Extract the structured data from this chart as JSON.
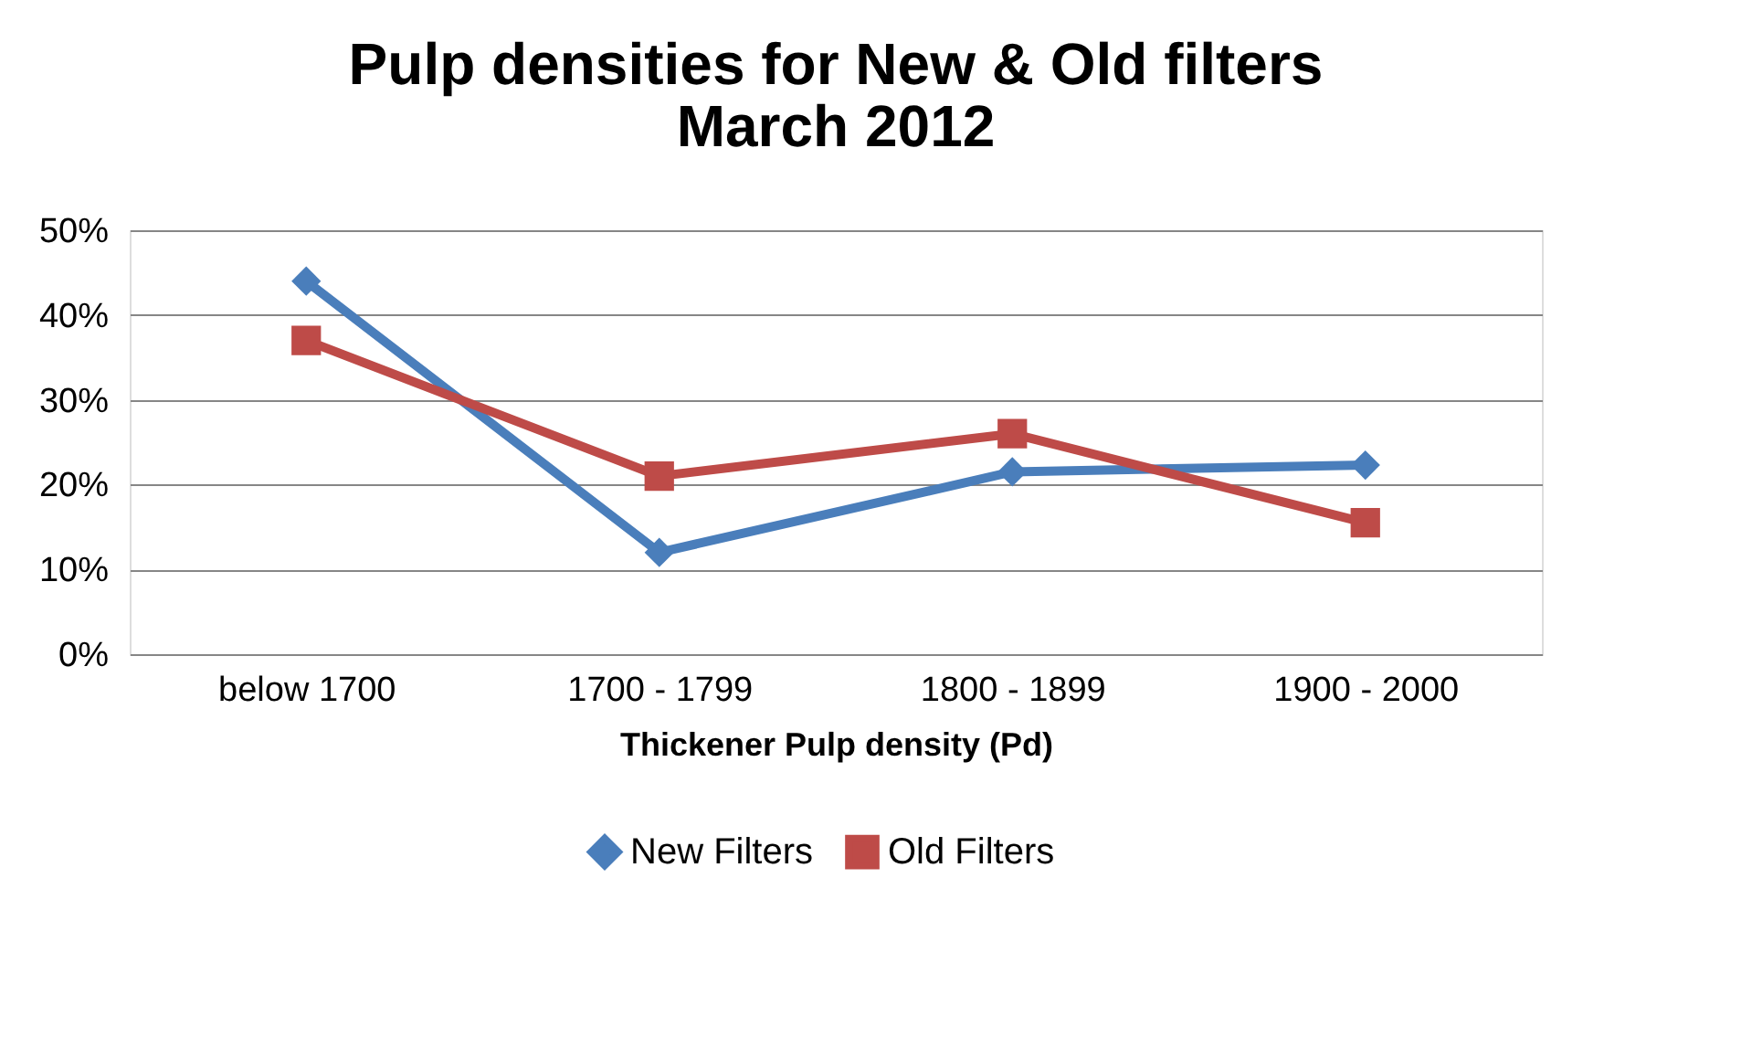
{
  "chart_data": {
    "type": "line",
    "title": "Pulp densities for New & Old filters March 2012",
    "xlabel": "Thickener Pulp density (Pd)",
    "categories": [
      "below 1700",
      "1700 - 1799",
      "1800 - 1899",
      "1900 - 2000"
    ],
    "series": [
      {
        "name": "New Filters",
        "color": "#4a7ebb",
        "marker": "diamond",
        "values": [
          44,
          12,
          21.5,
          22.3
        ]
      },
      {
        "name": "Old Filters",
        "color": "#be4b48",
        "marker": "square",
        "values": [
          37,
          21,
          26,
          15.5
        ]
      }
    ],
    "ylim": [
      0,
      50
    ],
    "yticks": [
      {
        "value": 0,
        "label": "0%"
      },
      {
        "value": 10,
        "label": "10%"
      },
      {
        "value": 20,
        "label": "20%"
      },
      {
        "value": 30,
        "label": "30%"
      },
      {
        "value": 40,
        "label": "40%"
      },
      {
        "value": 50,
        "label": "50%"
      }
    ],
    "grid": "y",
    "legend": "bottom",
    "line_style": "solid"
  }
}
